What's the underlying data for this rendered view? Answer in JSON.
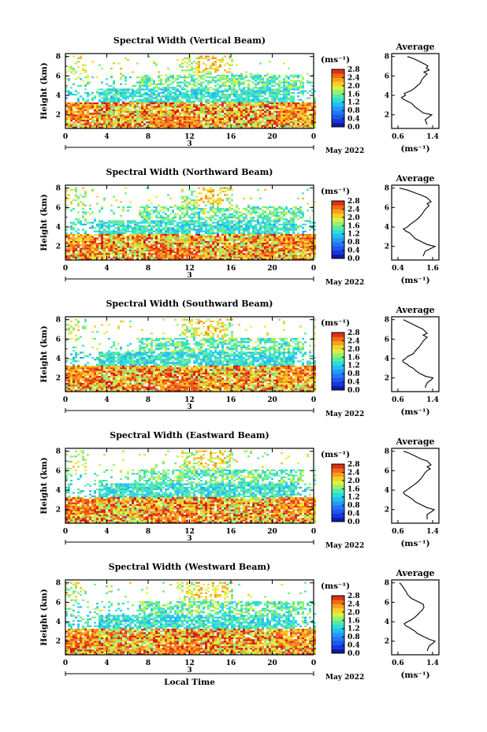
{
  "chart_data": [
    {
      "type": "heatmap",
      "title": "Spectral Width (Vertical Beam)",
      "ylabel": "Height (km)",
      "x_ticks": [
        "0",
        "4",
        "8",
        "12",
        "16",
        "20",
        "0"
      ],
      "day_label": "3",
      "month_label": "May 2022",
      "y_ticks": [
        "2",
        "4",
        "6",
        "8"
      ],
      "xlim": [
        0,
        24
      ],
      "ylim": [
        0.6,
        8.3
      ],
      "colorbar": {
        "unit": "(ms⁻¹)",
        "ticks": [
          "2.8",
          "2.4",
          "2.0",
          "1.6",
          "1.2",
          "0.8",
          "0.4",
          "0.0"
        ],
        "range": [
          0.0,
          2.8
        ]
      },
      "profile": {
        "title": "Average",
        "xlabel": "(ms⁻¹)",
        "x_ticks": [
          "0.6",
          "1.4"
        ],
        "xlim": [
          0.4,
          1.6
        ],
        "y_ticks": [
          "2",
          "4",
          "6",
          "8"
        ],
        "heights": [
          1.0,
          1.5,
          1.8,
          2.0,
          2.2,
          2.5,
          2.8,
          3.0,
          3.2,
          3.4,
          3.6,
          3.8,
          4.0,
          4.2,
          4.5,
          4.8,
          5.0,
          5.2,
          5.5,
          5.8,
          6.0,
          6.2,
          6.4,
          6.6,
          6.8,
          7.0,
          7.2,
          7.5,
          7.8,
          8.0
        ],
        "values": [
          1.3,
          1.25,
          1.35,
          1.42,
          1.2,
          1.1,
          1.0,
          0.95,
          0.9,
          0.8,
          0.7,
          0.65,
          0.75,
          0.72,
          0.9,
          1.0,
          1.05,
          1.12,
          1.15,
          1.2,
          1.25,
          1.3,
          1.22,
          1.35,
          1.28,
          1.32,
          1.25,
          1.1,
          0.95,
          0.8
        ]
      }
    },
    {
      "type": "heatmap",
      "title": "Spectral Width (Northward Beam)",
      "ylabel": "Height (km)",
      "x_ticks": [
        "0",
        "4",
        "8",
        "12",
        "16",
        "20",
        "0"
      ],
      "day_label": "3",
      "month_label": "May 2022",
      "y_ticks": [
        "2",
        "4",
        "6",
        "8"
      ],
      "xlim": [
        0,
        24
      ],
      "ylim": [
        0.6,
        8.3
      ],
      "colorbar": {
        "unit": "(ms⁻¹)",
        "ticks": [
          "2.8",
          "2.4",
          "2.0",
          "1.6",
          "1.2",
          "0.8",
          "0.4",
          "0.0"
        ],
        "range": [
          0.0,
          2.8
        ]
      },
      "profile": {
        "title": "Average",
        "xlabel": "(ms⁻¹)",
        "x_ticks": [
          "0.4",
          "1.6"
        ],
        "xlim": [
          0.4,
          1.6
        ],
        "y_ticks": [
          "2",
          "4",
          "6",
          "8"
        ],
        "heights": [
          1.0,
          1.5,
          1.8,
          2.0,
          2.2,
          2.5,
          2.8,
          3.0,
          3.2,
          3.4,
          3.6,
          3.8,
          4.0,
          4.2,
          4.5,
          4.8,
          5.0,
          5.2,
          5.5,
          5.8,
          6.0,
          6.2,
          6.4,
          6.6,
          6.8,
          7.0,
          7.2,
          7.5,
          7.8,
          8.0
        ],
        "values": [
          1.2,
          1.25,
          1.4,
          1.5,
          1.3,
          1.15,
          1.0,
          0.95,
          0.9,
          0.85,
          0.75,
          0.7,
          0.8,
          0.85,
          0.95,
          1.05,
          1.1,
          1.15,
          1.2,
          1.25,
          1.3,
          1.35,
          1.3,
          1.4,
          1.35,
          1.3,
          1.2,
          1.0,
          0.8,
          0.6
        ]
      }
    },
    {
      "type": "heatmap",
      "title": "Spectral Width (Southward Beam)",
      "ylabel": "Height (km)",
      "x_ticks": [
        "0",
        "4",
        "8",
        "12",
        "16",
        "20",
        "0"
      ],
      "day_label": "3",
      "month_label": "May 2022",
      "y_ticks": [
        "2",
        "4",
        "6",
        "8"
      ],
      "xlim": [
        0,
        24
      ],
      "ylim": [
        0.6,
        8.3
      ],
      "colorbar": {
        "unit": "(ms⁻¹)",
        "ticks": [
          "2.8",
          "2.4",
          "2.0",
          "1.6",
          "1.2",
          "0.8",
          "0.4",
          "0.0"
        ],
        "range": [
          0.0,
          2.8
        ]
      },
      "profile": {
        "title": "Average",
        "xlabel": "(ms⁻¹)",
        "x_ticks": [
          "0.6",
          "1.4"
        ],
        "xlim": [
          0.4,
          1.6
        ],
        "y_ticks": [
          "2",
          "4",
          "6",
          "8"
        ],
        "heights": [
          1.0,
          1.5,
          1.8,
          2.0,
          2.2,
          2.5,
          2.8,
          3.0,
          3.2,
          3.4,
          3.6,
          3.8,
          4.0,
          4.2,
          4.5,
          4.8,
          5.0,
          5.2,
          5.5,
          5.8,
          6.0,
          6.2,
          6.4,
          6.6,
          6.8,
          7.0,
          7.2,
          7.5,
          7.8,
          8.0
        ],
        "values": [
          1.25,
          1.3,
          1.4,
          1.45,
          1.25,
          1.1,
          1.0,
          0.95,
          0.85,
          0.8,
          0.7,
          0.68,
          0.75,
          0.8,
          0.95,
          1.0,
          1.05,
          1.1,
          1.15,
          1.2,
          1.25,
          1.3,
          1.2,
          1.3,
          1.25,
          1.2,
          1.1,
          0.95,
          0.8,
          0.7
        ]
      }
    },
    {
      "type": "heatmap",
      "title": "Spectral Width (Eastward Beam)",
      "ylabel": "Height (km)",
      "x_ticks": [
        "0",
        "4",
        "8",
        "12",
        "16",
        "20",
        "0"
      ],
      "day_label": "3",
      "month_label": "May 2022",
      "y_ticks": [
        "2",
        "4",
        "6",
        "8"
      ],
      "xlim": [
        0,
        24
      ],
      "ylim": [
        0.6,
        8.3
      ],
      "colorbar": {
        "unit": "(ms⁻¹)",
        "ticks": [
          "2.8",
          "2.4",
          "2.0",
          "1.6",
          "1.2",
          "0.8",
          "0.4",
          "0.0"
        ],
        "range": [
          0.0,
          2.8
        ]
      },
      "profile": {
        "title": "Average",
        "xlabel": "(ms⁻¹)",
        "x_ticks": [
          "0.6",
          "1.4"
        ],
        "xlim": [
          0.4,
          1.6
        ],
        "y_ticks": [
          "2",
          "4",
          "6",
          "8"
        ],
        "heights": [
          1.0,
          1.5,
          1.8,
          2.0,
          2.2,
          2.5,
          2.8,
          3.0,
          3.2,
          3.4,
          3.6,
          3.8,
          4.0,
          4.2,
          4.5,
          4.8,
          5.0,
          5.2,
          5.5,
          5.8,
          6.0,
          6.2,
          6.4,
          6.6,
          6.8,
          7.0,
          7.2,
          7.5,
          7.8,
          8.0
        ],
        "values": [
          1.3,
          1.3,
          1.42,
          1.48,
          1.3,
          1.15,
          1.0,
          0.95,
          0.88,
          0.8,
          0.72,
          0.7,
          0.78,
          0.85,
          0.95,
          1.05,
          1.1,
          1.15,
          1.2,
          1.25,
          1.3,
          1.38,
          1.3,
          1.4,
          1.35,
          1.3,
          1.15,
          1.0,
          0.85,
          0.7
        ]
      }
    },
    {
      "type": "heatmap",
      "title": "Spectral Width (Westward Beam)",
      "ylabel": "Height (km)",
      "x_ticks": [
        "0",
        "4",
        "8",
        "12",
        "16",
        "20",
        "0"
      ],
      "day_label": "3",
      "month_label": "May 2022",
      "xlabel": "Local Time",
      "y_ticks": [
        "2",
        "4",
        "6",
        "8"
      ],
      "xlim": [
        0,
        24
      ],
      "ylim": [
        0.6,
        8.3
      ],
      "colorbar": {
        "unit": "(ms⁻¹)",
        "ticks": [
          "2.8",
          "2.4",
          "2.0",
          "1.6",
          "1.2",
          "0.8",
          "0.4",
          "0.0"
        ],
        "range": [
          0.0,
          2.8
        ]
      },
      "profile": {
        "title": "Average",
        "xlabel": "(ms⁻¹)",
        "x_ticks": [
          "0.6",
          "1.4"
        ],
        "xlim": [
          0.4,
          1.6
        ],
        "y_ticks": [
          "2",
          "4",
          "6",
          "8"
        ],
        "heights": [
          1.0,
          1.5,
          1.8,
          2.0,
          2.2,
          2.5,
          2.8,
          3.0,
          3.2,
          3.4,
          3.6,
          3.8,
          4.0,
          4.2,
          4.5,
          4.8,
          5.0,
          5.2,
          5.5,
          5.8,
          6.0,
          6.2,
          6.4,
          6.6,
          6.8,
          7.0,
          7.2,
          7.5,
          7.8,
          8.0
        ],
        "values": [
          1.3,
          1.35,
          1.45,
          1.5,
          1.35,
          1.2,
          1.05,
          1.0,
          0.92,
          0.85,
          0.75,
          0.72,
          0.8,
          0.9,
          1.0,
          1.08,
          1.12,
          1.18,
          1.22,
          1.2,
          1.1,
          1.0,
          0.9,
          0.85,
          0.8,
          0.78,
          0.75,
          0.7,
          0.65,
          0.6
        ]
      }
    }
  ]
}
